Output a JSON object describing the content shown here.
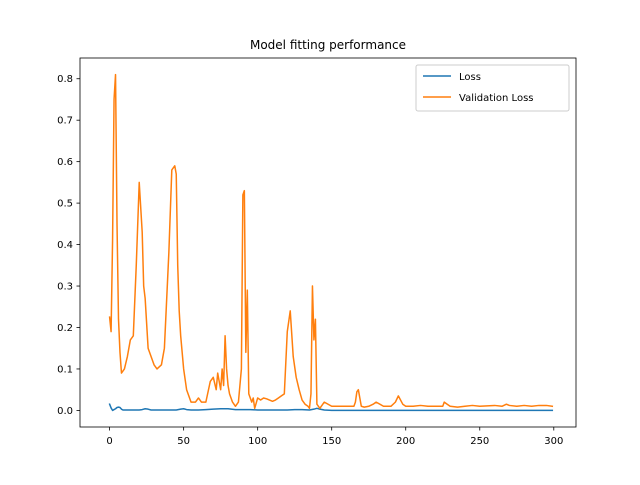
{
  "chart_data": {
    "type": "line",
    "title": "Model fitting performance",
    "xlabel": "",
    "ylabel": "",
    "xlim": [
      -20,
      315
    ],
    "ylim": [
      -0.04,
      0.85
    ],
    "xticks": [
      0,
      50,
      100,
      150,
      200,
      250,
      300
    ],
    "xtick_labels": [
      "0",
      "50",
      "100",
      "150",
      "200",
      "250",
      "300"
    ],
    "yticks": [
      0.0,
      0.1,
      0.2,
      0.3,
      0.4,
      0.5,
      0.6,
      0.7,
      0.8
    ],
    "ytick_labels": [
      "0.0",
      "0.1",
      "0.2",
      "0.3",
      "0.4",
      "0.5",
      "0.6",
      "0.7",
      "0.8"
    ],
    "grid": false,
    "legend_position": "top-right",
    "series": [
      {
        "name": "Loss",
        "color": "#1f77b4",
        "x": [
          0,
          1,
          2,
          3,
          4,
          5,
          6,
          7,
          8,
          9,
          10,
          15,
          20,
          22,
          24,
          26,
          28,
          30,
          35,
          40,
          45,
          48,
          50,
          52,
          55,
          60,
          65,
          70,
          75,
          80,
          85,
          90,
          95,
          100,
          105,
          110,
          115,
          120,
          125,
          130,
          135,
          138,
          140,
          142,
          145,
          150,
          200,
          250,
          299
        ],
        "y": [
          0.015,
          0.006,
          0.0,
          0.002,
          0.004,
          0.007,
          0.008,
          0.007,
          0.003,
          0.001,
          0.001,
          0.001,
          0.001,
          0.002,
          0.004,
          0.003,
          0.001,
          0.001,
          0.001,
          0.001,
          0.001,
          0.003,
          0.004,
          0.002,
          0.001,
          0.001,
          0.002,
          0.003,
          0.004,
          0.004,
          0.002,
          0.002,
          0.002,
          0.001,
          0.001,
          0.001,
          0.001,
          0.001,
          0.002,
          0.002,
          0.001,
          0.003,
          0.005,
          0.003,
          0.001,
          0.0,
          0.0,
          0.0,
          0.0
        ]
      },
      {
        "name": "Validation Loss",
        "color": "#ff7f0e",
        "x": [
          0,
          1,
          2,
          3,
          4,
          5,
          6,
          7,
          8,
          10,
          12,
          14,
          16,
          18,
          20,
          22,
          23,
          24,
          26,
          28,
          30,
          32,
          35,
          37,
          40,
          42,
          44,
          45,
          46,
          47,
          48,
          50,
          52,
          55,
          58,
          60,
          62,
          65,
          68,
          70,
          72,
          73,
          75,
          76,
          77,
          78,
          79,
          80,
          81,
          83,
          85,
          87,
          89,
          90,
          91,
          92,
          93,
          94,
          95,
          96,
          97,
          98,
          100,
          102,
          104,
          106,
          108,
          110,
          112,
          114,
          116,
          118,
          120,
          122,
          124,
          126,
          128,
          130,
          132,
          134,
          135,
          136,
          137,
          138,
          139,
          140,
          142,
          145,
          150,
          155,
          160,
          165,
          166,
          167,
          168,
          169,
          170,
          172,
          175,
          178,
          180,
          185,
          190,
          193,
          195,
          198,
          200,
          205,
          210,
          215,
          220,
          225,
          226,
          228,
          230,
          235,
          240,
          245,
          250,
          255,
          260,
          265,
          268,
          270,
          275,
          280,
          285,
          290,
          295,
          299
        ],
        "y": [
          0.225,
          0.19,
          0.41,
          0.75,
          0.81,
          0.45,
          0.22,
          0.14,
          0.09,
          0.1,
          0.13,
          0.17,
          0.18,
          0.35,
          0.55,
          0.43,
          0.3,
          0.27,
          0.15,
          0.13,
          0.11,
          0.1,
          0.11,
          0.15,
          0.38,
          0.58,
          0.59,
          0.57,
          0.35,
          0.24,
          0.18,
          0.1,
          0.05,
          0.02,
          0.02,
          0.03,
          0.02,
          0.02,
          0.07,
          0.08,
          0.05,
          0.09,
          0.05,
          0.1,
          0.06,
          0.18,
          0.1,
          0.06,
          0.04,
          0.02,
          0.01,
          0.02,
          0.1,
          0.52,
          0.53,
          0.14,
          0.29,
          0.04,
          0.03,
          0.02,
          0.03,
          0.005,
          0.03,
          0.025,
          0.03,
          0.028,
          0.025,
          0.022,
          0.025,
          0.03,
          0.035,
          0.04,
          0.19,
          0.24,
          0.13,
          0.08,
          0.05,
          0.025,
          0.015,
          0.01,
          0.005,
          0.04,
          0.3,
          0.17,
          0.22,
          0.015,
          0.005,
          0.02,
          0.01,
          0.01,
          0.01,
          0.01,
          0.02,
          0.045,
          0.05,
          0.03,
          0.01,
          0.008,
          0.01,
          0.015,
          0.02,
          0.01,
          0.01,
          0.02,
          0.035,
          0.015,
          0.01,
          0.01,
          0.012,
          0.01,
          0.01,
          0.01,
          0.02,
          0.015,
          0.01,
          0.008,
          0.01,
          0.012,
          0.01,
          0.011,
          0.012,
          0.01,
          0.015,
          0.012,
          0.01,
          0.012,
          0.01,
          0.012,
          0.012,
          0.01
        ]
      }
    ]
  }
}
